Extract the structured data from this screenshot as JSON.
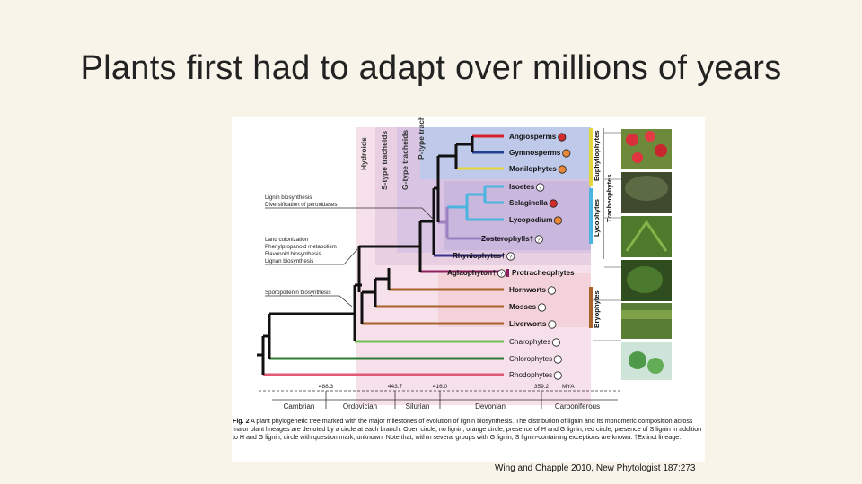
{
  "slide": {
    "title": "Plants first had to adapt over millions of years",
    "citation": "Wing and Chapple 2010, New Phytologist 187:273"
  },
  "figure": {
    "tracheid_labels": [
      "Hydroids",
      "S-type tracheids",
      "G-type tracheids",
      "P-type tracheids"
    ],
    "milestones": {
      "lignin": [
        "Lignin biosynthesis",
        "Diversification of peroxidases"
      ],
      "land": [
        "Land colonization",
        "Phenylpropanoid metabolism",
        "Flavonoid biosynthesis",
        "Lignan biosynthesis"
      ],
      "sporopollenin": [
        "Sporopollenin biosynthesis"
      ]
    },
    "taxa": [
      {
        "name": "Angiosperms",
        "marker": "red"
      },
      {
        "name": "Gymnosperms",
        "marker": "orange"
      },
      {
        "name": "Monilophytes",
        "marker": "orange"
      },
      {
        "name": "Isoetes",
        "marker": "question"
      },
      {
        "name": "Selaginella",
        "marker": "red"
      },
      {
        "name": "Lycopodium",
        "marker": "orange"
      },
      {
        "name": "Zosterophylls†",
        "marker": "question"
      },
      {
        "name": "Rhyniophytes†",
        "marker": "question"
      },
      {
        "name": "Aglaophyton†",
        "marker": "question"
      },
      {
        "name": "Hornworts",
        "marker": "open"
      },
      {
        "name": "Mosses",
        "marker": "open"
      },
      {
        "name": "Liverworts",
        "marker": "open"
      },
      {
        "name": "Charophytes",
        "marker": "open"
      },
      {
        "name": "Chlorophytes",
        "marker": "open"
      },
      {
        "name": "Rhodophytes",
        "marker": "open"
      }
    ],
    "protracheophytes": "Protracheophytes",
    "groups": {
      "euphyllophytes": "Euphyllophytes",
      "tracheophytes": "Tracheophytes",
      "lycophytes": "Lycophytes",
      "bryophytes": "Bryophytes"
    },
    "timescale": {
      "ticks": [
        "488.3",
        "443.7",
        "416.0",
        "359.2"
      ],
      "unit": "MYA",
      "periods": [
        "Cambrian",
        "Ordovician",
        "Silurian",
        "Devonian",
        "Carboniferous"
      ]
    },
    "caption": {
      "label": "Fig. 2",
      "text": "A plant phylogenetic tree marked with the major milestones of evolution of lignin biosynthesis. The distribution of lignin and its monomeric composition across major plant lineages are denoted by a circle at each branch. Open circle, no lignin; orange circle, presence of H and G lignin; red circle, presence of S lignin in addition to H and G lignin; circle with question mark, unknown. Note that, within several groups with G lignin, S lignin-containing exceptions are known. †Extinct lineage."
    },
    "colors": {
      "angio": "#d81e2a",
      "gymno": "#1f3f8f",
      "monilo": "#e3d53c",
      "lyco": "#4ab5e0",
      "zostero": "#9d80c2",
      "rhynio": "#3a3490",
      "aglao": "#8e1f5e",
      "bryo": "#a8622a",
      "charo": "#6fbf55",
      "chloro": "#2f7d32",
      "rhodo": "#e05a76",
      "red_marker": "#d22b2b",
      "orange_marker": "#e8893a"
    }
  }
}
